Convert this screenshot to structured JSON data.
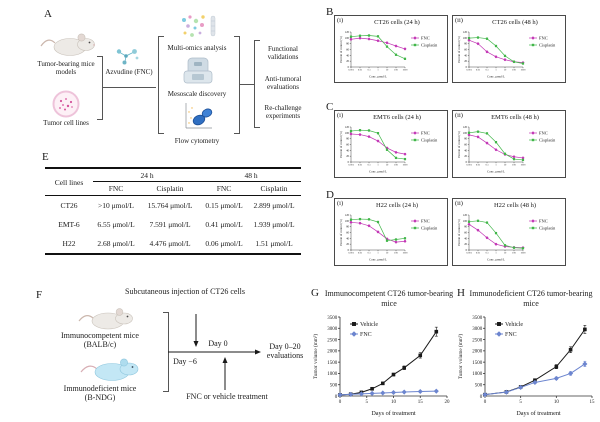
{
  "panel_letters": {
    "A": "A",
    "B": "B",
    "C": "C",
    "D": "D",
    "E": "E",
    "F": "F",
    "G": "G",
    "H": "H"
  },
  "panelA": {
    "inputs": [
      {
        "label": "Tumor-bearing mice models"
      },
      {
        "label": "Tumor cell lines"
      }
    ],
    "drug_label": "Azvudine (FNC)",
    "methods": [
      {
        "label": "Multi-omics analysis"
      },
      {
        "label": "Mesoscale discovery"
      },
      {
        "label": "Flow cytometry"
      }
    ],
    "outputs": [
      {
        "label": "Functional validations"
      },
      {
        "label": "Anti-tumoral evaluations"
      },
      {
        "label": "Re-challenge experiments"
      }
    ]
  },
  "tableE": {
    "row_header": "Cell lines",
    "col_group_headers": [
      "24 h",
      "48 h"
    ],
    "sub_headers": [
      "FNC",
      "Cisplatin",
      "FNC",
      "Cisplatin"
    ],
    "rows": [
      {
        "cell_line": "CT26",
        "values": [
          ">10 μmol/L",
          "15.764 μmol/L",
          "0.15 μmol/L",
          "2.899 μmol/L"
        ]
      },
      {
        "cell_line": "EMT-6",
        "values": [
          "6.55 μmol/L",
          "7.591 μmol/L",
          "0.41 μmol/L",
          "1.939 μmol/L"
        ]
      },
      {
        "cell_line": "H22",
        "values": [
          "2.68 μmol/L",
          "4.476 μmol/L",
          "0.06 μmol/L",
          "1.51 μmol/L"
        ]
      }
    ]
  },
  "panelF": {
    "injection_label": "Subcutaneous injection of CT26 cells",
    "mice": [
      {
        "line1": "Immunocompetent mice",
        "line2": "(BALB/c)"
      },
      {
        "line1": "Immunodeficient mice",
        "line2": "(B-NDG)"
      }
    ],
    "day_minus6": "Day −6",
    "day0": "Day 0",
    "evaluations": "Day 0–20 evaluations",
    "treatment": "FNC or vehicle treatment"
  },
  "chart_data": [
    {
      "id": "B-i",
      "type": "line",
      "sub": "(i)",
      "title": "CT26 cells (24 h)",
      "xlabel": "Conc. μmol/L",
      "ylabel": "Percent of control (%)",
      "x_categories": [
        "0.001",
        "0.01",
        "0.1",
        "1",
        "10",
        "100",
        "1000"
      ],
      "ylim": [
        0,
        120
      ],
      "yticks": [
        0,
        20,
        40,
        60,
        80,
        100,
        120
      ],
      "legend_position": "right",
      "series": [
        {
          "name": "FNC",
          "color": "#C234B4",
          "marker": "diamond",
          "err": 3,
          "values": [
            95,
            99,
            96,
            90,
            83,
            72,
            62
          ]
        },
        {
          "name": "Cisplatin",
          "color": "#41B649",
          "marker": "square",
          "err": 3,
          "values": [
            104,
            107,
            108,
            105,
            70,
            42,
            28
          ]
        }
      ]
    },
    {
      "id": "B-ii",
      "type": "line",
      "sub": "(ii)",
      "title": "CT26 cells (48 h)",
      "xlabel": "Conc. μmol/L",
      "ylabel": "Percent of control (%)",
      "x_categories": [
        "0.001",
        "0.01",
        "0.1",
        "1",
        "10",
        "100",
        "1000"
      ],
      "ylim": [
        0,
        120
      ],
      "yticks": [
        0,
        20,
        40,
        60,
        80,
        100,
        120
      ],
      "legend_position": "right",
      "series": [
        {
          "name": "FNC",
          "color": "#C234B4",
          "marker": "diamond",
          "err": 3,
          "values": [
            92,
            80,
            52,
            35,
            25,
            18,
            15
          ]
        },
        {
          "name": "Cisplatin",
          "color": "#41B649",
          "marker": "square",
          "err": 3,
          "values": [
            99,
            101,
            97,
            72,
            38,
            18,
            12
          ]
        }
      ]
    },
    {
      "id": "C-i",
      "type": "line",
      "sub": "(i)",
      "title": "EMT6 cells (24 h)",
      "xlabel": "Conc. μmol/L",
      "ylabel": "Percent of control (%)",
      "x_categories": [
        "0.001",
        "0.01",
        "0.1",
        "1",
        "10",
        "100",
        "1000"
      ],
      "ylim": [
        0,
        120
      ],
      "yticks": [
        0,
        20,
        40,
        60,
        80,
        100,
        120
      ],
      "legend_position": "right",
      "series": [
        {
          "name": "FNC",
          "color": "#C234B4",
          "marker": "diamond",
          "err": 3,
          "values": [
            96,
            94,
            87,
            72,
            48,
            33,
            27
          ]
        },
        {
          "name": "Cisplatin",
          "color": "#41B649",
          "marker": "square",
          "err": 3,
          "values": [
            106,
            109,
            108,
            99,
            42,
            14,
            10
          ]
        }
      ]
    },
    {
      "id": "C-ii",
      "type": "line",
      "sub": "(ii)",
      "title": "EMT6 cells (48 h)",
      "xlabel": "Conc. μmol/L",
      "ylabel": "Percent of control (%)",
      "x_categories": [
        "0.001",
        "0.01",
        "0.1",
        "1",
        "10",
        "100",
        "1000"
      ],
      "ylim": [
        0,
        120
      ],
      "yticks": [
        0,
        20,
        40,
        60,
        80,
        100,
        120
      ],
      "legend_position": "right",
      "series": [
        {
          "name": "FNC",
          "color": "#C234B4",
          "marker": "diamond",
          "err": 3,
          "values": [
            93,
            86,
            65,
            42,
            26,
            18,
            14
          ]
        },
        {
          "name": "Cisplatin",
          "color": "#41B649",
          "marker": "square",
          "err": 3,
          "values": [
            100,
            104,
            98,
            68,
            28,
            10,
            7
          ]
        }
      ]
    },
    {
      "id": "D-i",
      "type": "line",
      "sub": "(i)",
      "title": "H22 cells (24 h)",
      "xlabel": "Conc. μmol/L",
      "ylabel": "Percent of control (%)",
      "x_categories": [
        "0.001",
        "0.01",
        "0.1",
        "1",
        "10",
        "100",
        "1000"
      ],
      "ylim": [
        0,
        120
      ],
      "yticks": [
        0,
        20,
        40,
        60,
        80,
        100,
        120
      ],
      "legend_position": "right",
      "series": [
        {
          "name": "FNC",
          "color": "#C234B4",
          "marker": "diamond",
          "err": 3,
          "values": [
            95,
            92,
            83,
            62,
            38,
            27,
            30
          ]
        },
        {
          "name": "Cisplatin",
          "color": "#41B649",
          "marker": "square",
          "err": 3,
          "values": [
            104,
            106,
            105,
            96,
            32,
            36,
            40
          ]
        }
      ]
    },
    {
      "id": "D-ii",
      "type": "line",
      "sub": "(ii)",
      "title": "H22 cells (48 h)",
      "xlabel": "Conc. μmol/L",
      "ylabel": "Percent of control (%)",
      "x_categories": [
        "0.001",
        "0.01",
        "0.1",
        "1",
        "10",
        "100",
        "1000"
      ],
      "ylim": [
        0,
        120
      ],
      "yticks": [
        0,
        20,
        40,
        60,
        80,
        100,
        120
      ],
      "legend_position": "right",
      "series": [
        {
          "name": "FNC",
          "color": "#C234B4",
          "marker": "diamond",
          "err": 3,
          "values": [
            88,
            68,
            42,
            20,
            12,
            9,
            8
          ]
        },
        {
          "name": "Cisplatin",
          "color": "#41B649",
          "marker": "square",
          "err": 3,
          "values": [
            97,
            100,
            94,
            58,
            16,
            8,
            6
          ]
        }
      ]
    },
    {
      "id": "G",
      "type": "line",
      "title": "Immunocompetent CT26 tumor-bearing mice",
      "xlabel": "Days of treatment",
      "ylabel": "Tumor volume (mm³)",
      "x": [
        0,
        2,
        4,
        6,
        8,
        10,
        12,
        15,
        18
      ],
      "xlim": [
        0,
        20
      ],
      "xticks": [
        0,
        5,
        10,
        15,
        20
      ],
      "ylim": [
        0,
        3500
      ],
      "yticks": [
        0,
        500,
        1000,
        1500,
        2000,
        2500,
        3000,
        3500
      ],
      "legend_position": "top-left",
      "series": [
        {
          "name": "Vehicle",
          "color": "#1A1A1A",
          "marker": "square",
          "err": [
            10,
            15,
            25,
            35,
            45,
            60,
            80,
            120,
            200
          ],
          "values": [
            50,
            80,
            160,
            320,
            560,
            950,
            1250,
            1800,
            2850
          ]
        },
        {
          "name": "FNC",
          "color": "#6C85CF",
          "marker": "diamond",
          "err": [
            8,
            10,
            12,
            14,
            16,
            18,
            20,
            25,
            28
          ],
          "values": [
            50,
            70,
            95,
            115,
            135,
            155,
            175,
            200,
            215
          ]
        }
      ]
    },
    {
      "id": "H",
      "type": "line",
      "title": "Immunodeficient CT26 tumor-bearing mice",
      "xlabel": "Days of treatment",
      "ylabel": "Tumor volume (mm³)",
      "x": [
        0,
        3,
        5,
        7,
        10,
        12,
        14
      ],
      "xlim": [
        0,
        15
      ],
      "xticks": [
        0,
        5,
        10,
        15
      ],
      "ylim": [
        0,
        3500
      ],
      "yticks": [
        0,
        500,
        1000,
        1500,
        2000,
        2500,
        3000,
        3500
      ],
      "legend_position": "top-left",
      "series": [
        {
          "name": "Vehicle",
          "color": "#1A1A1A",
          "marker": "square",
          "err": [
            10,
            25,
            40,
            60,
            90,
            130,
            180
          ],
          "values": [
            60,
            180,
            400,
            700,
            1300,
            2050,
            2950
          ]
        },
        {
          "name": "FNC",
          "color": "#6C85CF",
          "marker": "diamond",
          "err": [
            10,
            20,
            30,
            45,
            60,
            80,
            120
          ],
          "values": [
            60,
            170,
            380,
            600,
            780,
            1000,
            1420
          ]
        }
      ]
    }
  ]
}
